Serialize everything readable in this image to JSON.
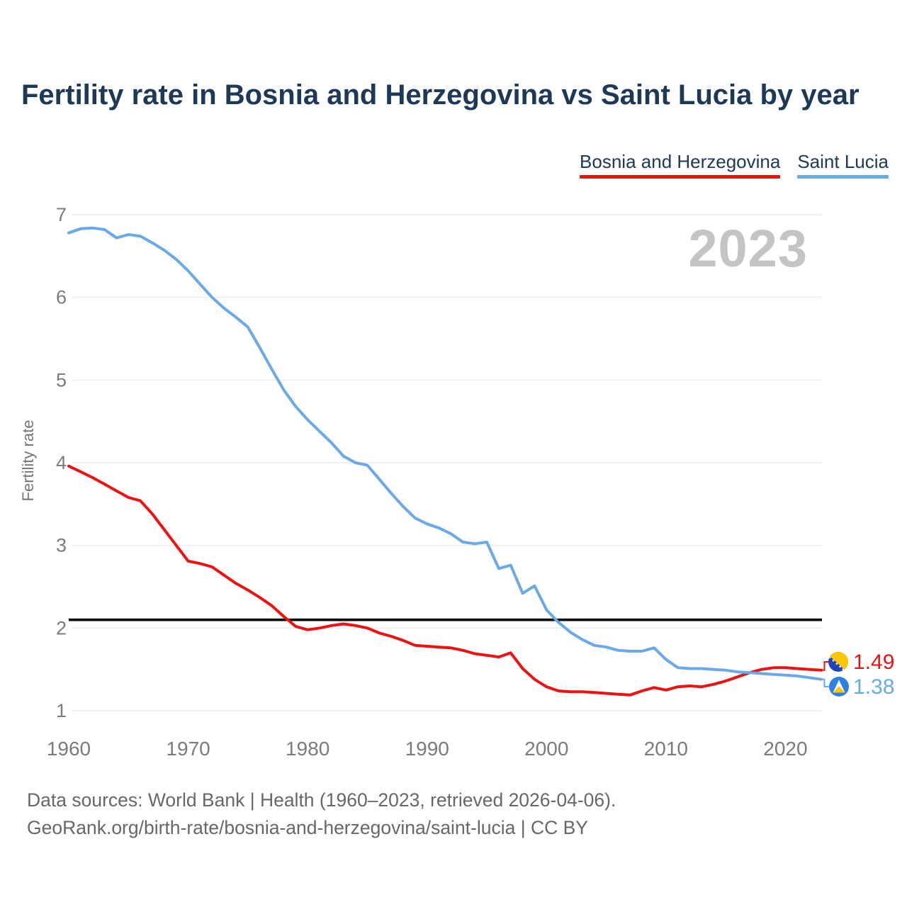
{
  "header": {
    "title": "Fertility rate in Bosnia and Herzegovina vs Saint Lucia by year"
  },
  "legend": [
    {
      "label": "Bosnia and Herzegovina",
      "color": "#ee1111"
    },
    {
      "label": "Saint Lucia",
      "color": "#6aa9e8"
    }
  ],
  "watermark": "2023",
  "chart_data": {
    "type": "line",
    "title": "Fertility rate in Bosnia and Herzegovina vs Saint Lucia by year",
    "xlabel": "",
    "ylabel": "Fertility rate",
    "xlim": [
      1960,
      2023
    ],
    "ylim": [
      1,
      7
    ],
    "x_ticks": [
      1960,
      1970,
      1980,
      1990,
      2000,
      2010,
      2020
    ],
    "y_ticks": [
      1,
      2,
      3,
      4,
      5,
      6,
      7
    ],
    "grid": "horizontal",
    "legend_position": "top-right",
    "reference_line": {
      "value": 2.1,
      "color": "#000000"
    },
    "x": [
      1960,
      1961,
      1962,
      1963,
      1964,
      1965,
      1966,
      1967,
      1968,
      1969,
      1970,
      1971,
      1972,
      1973,
      1974,
      1975,
      1976,
      1977,
      1978,
      1979,
      1980,
      1981,
      1982,
      1983,
      1984,
      1985,
      1986,
      1987,
      1988,
      1989,
      1990,
      1991,
      1992,
      1993,
      1994,
      1995,
      1996,
      1997,
      1998,
      1999,
      2000,
      2001,
      2002,
      2003,
      2004,
      2005,
      2006,
      2007,
      2008,
      2009,
      2010,
      2011,
      2012,
      2013,
      2014,
      2015,
      2016,
      2017,
      2018,
      2019,
      2020,
      2021,
      2022,
      2023
    ],
    "series": [
      {
        "name": "Bosnia and Herzegovina",
        "color": "#ee1111",
        "end_label": "1.49",
        "icon": "bosnia-and-herzegovina-flag-icon",
        "values": [
          3.96,
          3.89,
          3.82,
          3.74,
          3.66,
          3.58,
          3.54,
          3.38,
          3.19,
          3.0,
          2.81,
          2.78,
          2.74,
          2.64,
          2.54,
          2.46,
          2.37,
          2.27,
          2.14,
          2.02,
          1.98,
          2.0,
          2.03,
          2.05,
          2.03,
          2.0,
          1.94,
          1.9,
          1.85,
          1.79,
          1.78,
          1.77,
          1.76,
          1.73,
          1.69,
          1.67,
          1.65,
          1.7,
          1.51,
          1.38,
          1.29,
          1.24,
          1.23,
          1.23,
          1.22,
          1.21,
          1.2,
          1.19,
          1.24,
          1.28,
          1.25,
          1.29,
          1.3,
          1.29,
          1.32,
          1.36,
          1.41,
          1.46,
          1.5,
          1.52,
          1.52,
          1.51,
          1.5,
          1.49
        ]
      },
      {
        "name": "Saint Lucia",
        "color": "#6aa9e8",
        "end_label": "1.38",
        "icon": "saint-lucia-flag-icon",
        "values": [
          6.78,
          6.83,
          6.84,
          6.82,
          6.72,
          6.76,
          6.74,
          6.66,
          6.57,
          6.46,
          6.32,
          6.16,
          6.0,
          5.87,
          5.76,
          5.64,
          5.39,
          5.13,
          4.88,
          4.68,
          4.52,
          4.38,
          4.24,
          4.08,
          4.0,
          3.97,
          3.8,
          3.63,
          3.47,
          3.33,
          3.26,
          3.21,
          3.14,
          3.04,
          3.02,
          3.04,
          2.72,
          2.76,
          2.42,
          2.51,
          2.22,
          2.07,
          1.95,
          1.86,
          1.79,
          1.77,
          1.73,
          1.72,
          1.72,
          1.76,
          1.62,
          1.52,
          1.51,
          1.51,
          1.5,
          1.49,
          1.47,
          1.46,
          1.45,
          1.44,
          1.43,
          1.42,
          1.4,
          1.38
        ]
      }
    ]
  },
  "footer": {
    "line1": "Data sources: World Bank | Health (1960–2023, retrieved 2026-04-06).",
    "line2": "GeoRank.org/birth-rate/bosnia-and-herzegovina/saint-lucia | CC BY"
  }
}
